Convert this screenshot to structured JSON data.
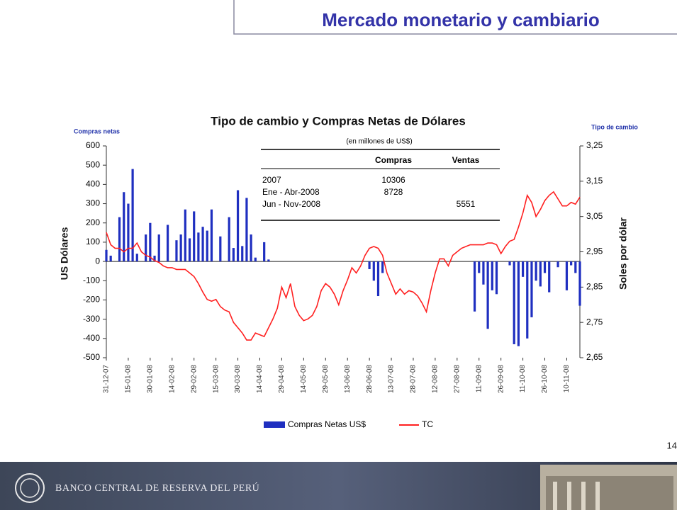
{
  "slide": {
    "title": "Mercado monetario y cambiario",
    "page_number": "14",
    "footer": "BANCO CENTRAL DE RESERVA DEL PERÚ"
  },
  "chart_data": {
    "type": "bar",
    "title": "Tipo de cambio y Compras Netas de Dólares",
    "y_label": "US Dólares",
    "y_caption": "Compras netas",
    "y2_label": "Soles por dólar",
    "y2_caption": "Tipo de cambio",
    "categories": [
      "31-12-07",
      null,
      null,
      null,
      null,
      "15-01-08",
      null,
      null,
      null,
      null,
      "30-01-08",
      null,
      null,
      null,
      null,
      "14-02-08",
      null,
      null,
      null,
      null,
      "29-02-08",
      null,
      null,
      null,
      null,
      "15-03-08",
      null,
      null,
      null,
      null,
      "30-03-08",
      null,
      null,
      null,
      null,
      "14-04-08",
      null,
      null,
      null,
      null,
      "29-04-08",
      null,
      null,
      null,
      null,
      "14-05-08",
      null,
      null,
      null,
      null,
      "29-05-08",
      null,
      null,
      null,
      null,
      "13-06-08",
      null,
      null,
      null,
      null,
      "28-06-08",
      null,
      null,
      null,
      null,
      "13-07-08",
      null,
      null,
      null,
      null,
      "28-07-08",
      null,
      null,
      null,
      null,
      "12-08-08",
      null,
      null,
      null,
      null,
      "27-08-08",
      null,
      null,
      null,
      null,
      "11-09-08",
      null,
      null,
      null,
      null,
      "26-09-08",
      null,
      null,
      null,
      null,
      "11-10-08",
      null,
      null,
      null,
      null,
      "26-10-08",
      null,
      null,
      null,
      null,
      "10-11-08",
      null,
      null,
      null
    ],
    "series": [
      {
        "name": "Compras Netas US$",
        "type": "bar",
        "color": "#1f2fc0",
        "values": [
          60,
          30,
          0,
          230,
          360,
          300,
          480,
          40,
          0,
          140,
          200,
          30,
          140,
          0,
          190,
          0,
          110,
          140,
          270,
          120,
          260,
          150,
          180,
          160,
          270,
          0,
          130,
          0,
          230,
          70,
          370,
          80,
          330,
          140,
          20,
          0,
          100,
          10,
          0,
          0,
          0,
          0,
          0,
          0,
          0,
          0,
          0,
          0,
          0,
          0,
          0,
          0,
          0,
          0,
          0,
          0,
          0,
          0,
          0,
          0,
          -40,
          -100,
          -180,
          -60,
          0,
          0,
          0,
          0,
          0,
          0,
          0,
          0,
          0,
          0,
          0,
          0,
          0,
          0,
          0,
          0,
          0,
          0,
          0,
          0,
          -260,
          -60,
          -120,
          -350,
          -150,
          -170,
          0,
          0,
          -20,
          -430,
          -440,
          -80,
          -400,
          -290,
          -100,
          -130,
          -60,
          -160,
          0,
          -30,
          0,
          -150,
          -20,
          -60,
          -230
        ]
      },
      {
        "name": "TC",
        "type": "line",
        "axis": "y2",
        "color": "#ff2020",
        "values": [
          3.005,
          2.97,
          2.96,
          2.96,
          2.95,
          2.96,
          2.96,
          2.975,
          2.95,
          2.94,
          2.935,
          2.925,
          2.92,
          2.91,
          2.905,
          2.905,
          2.9,
          2.9,
          2.9,
          2.89,
          2.88,
          2.86,
          2.836,
          2.815,
          2.81,
          2.815,
          2.795,
          2.785,
          2.78,
          2.75,
          2.735,
          2.72,
          2.7,
          2.7,
          2.72,
          2.715,
          2.71,
          2.735,
          2.76,
          2.79,
          2.85,
          2.82,
          2.86,
          2.795,
          2.77,
          2.755,
          2.76,
          2.77,
          2.795,
          2.84,
          2.86,
          2.85,
          2.83,
          2.8,
          2.84,
          2.87,
          2.905,
          2.89,
          2.91,
          2.94,
          2.96,
          2.965,
          2.96,
          2.94,
          2.89,
          2.86,
          2.83,
          2.845,
          2.83,
          2.84,
          2.836,
          2.825,
          2.805,
          2.78,
          2.84,
          2.89,
          2.93,
          2.93,
          2.91,
          2.94,
          2.95,
          2.96,
          2.965,
          2.97,
          2.97,
          2.97,
          2.97,
          2.975,
          2.975,
          2.97,
          2.945,
          2.965,
          2.98,
          2.985,
          3.02,
          3.06,
          3.11,
          3.09,
          3.05,
          3.07,
          3.095,
          3.11,
          3.12,
          3.1,
          3.08,
          3.08,
          3.09,
          3.085,
          3.105
        ]
      }
    ],
    "ylim": [
      -500,
      600
    ],
    "yticks": [
      600,
      500,
      400,
      300,
      200,
      100,
      0,
      -100,
      -200,
      -300,
      -400,
      -500
    ],
    "y2lim": [
      2.65,
      3.25
    ],
    "y2ticks": [
      {
        "value": 3.25,
        "label": "3,25"
      },
      {
        "value": 3.15,
        "label": "3,15"
      },
      {
        "value": 3.05,
        "label": "3,05"
      },
      {
        "value": 2.95,
        "label": "2,95"
      },
      {
        "value": 2.85,
        "label": "2,85"
      },
      {
        "value": 2.75,
        "label": "2,75"
      },
      {
        "value": 2.65,
        "label": "2,65"
      }
    ],
    "grid": false,
    "legend": "bottom",
    "table": {
      "caption": "(en millones de US$)",
      "columns": [
        "Compras",
        "Ventas"
      ],
      "rows": [
        {
          "label": "2007",
          "values": [
            10306,
            null
          ]
        },
        {
          "label": "Ene - Abr-2008",
          "values": [
            8728,
            null
          ]
        },
        {
          "label": "Jun - Nov-2008",
          "values": [
            null,
            5551
          ]
        }
      ]
    }
  }
}
